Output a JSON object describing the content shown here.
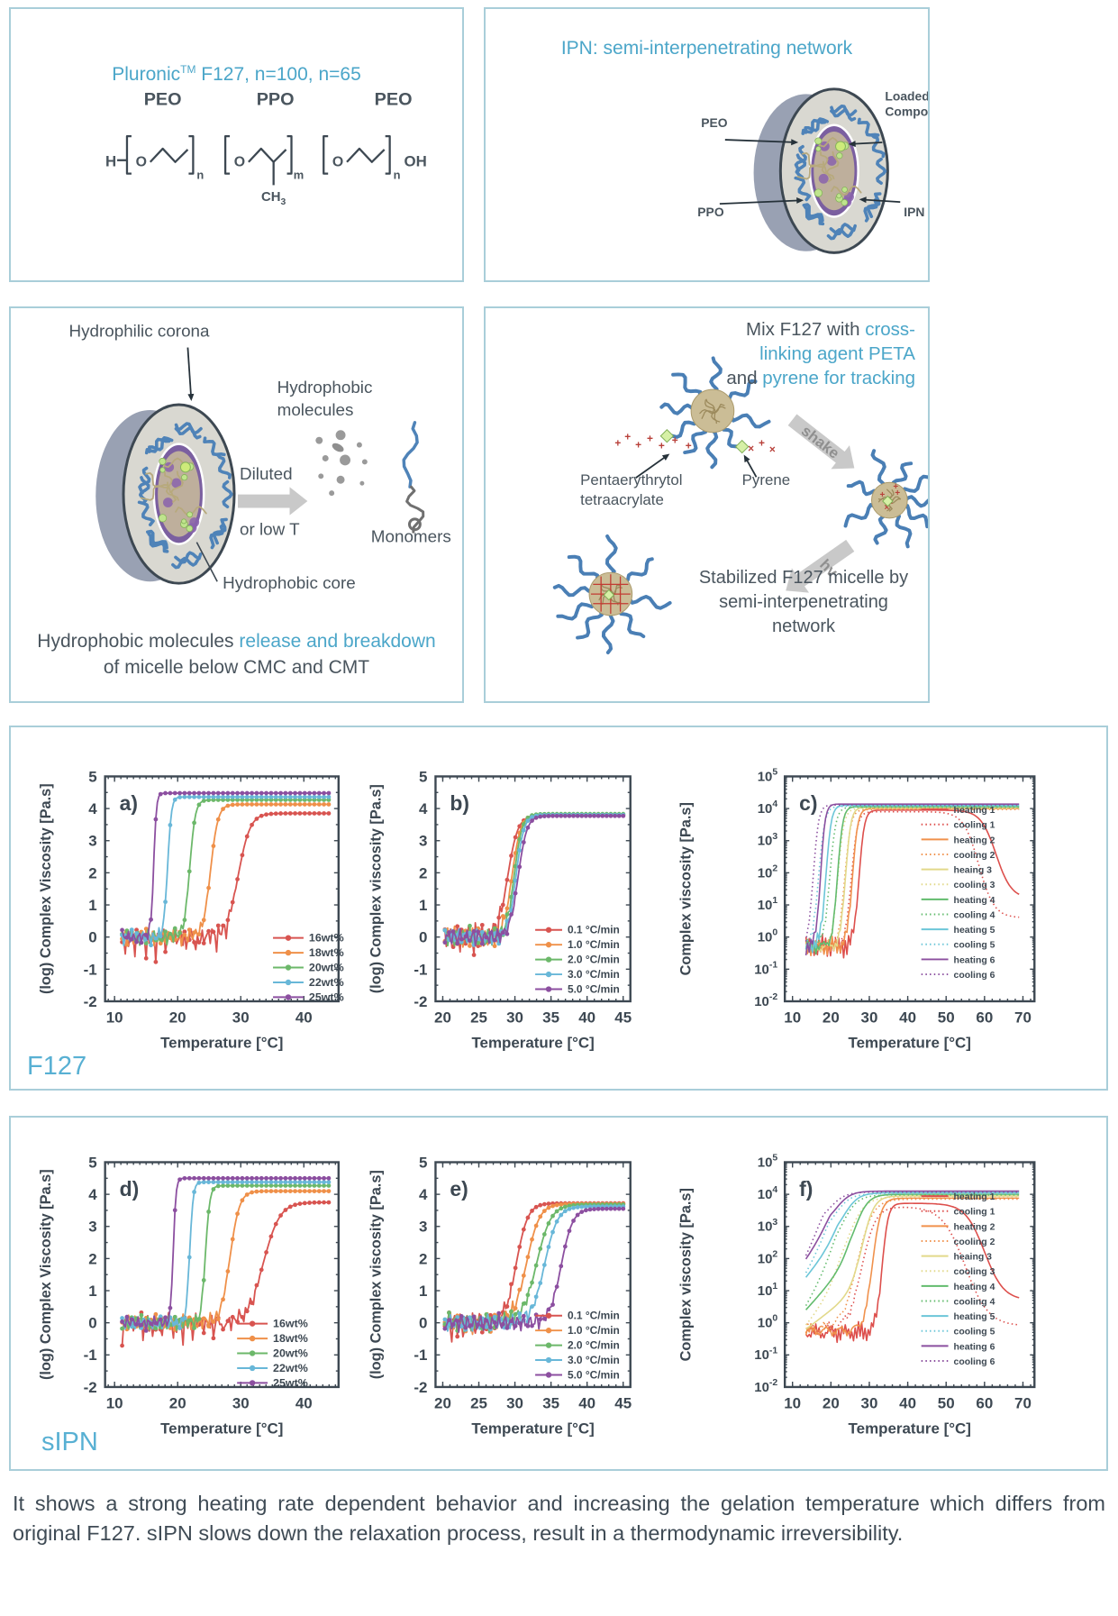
{
  "colors": {
    "accent": "#4ba6c9",
    "dark_text": "#4a555e",
    "axis": "#3d4852",
    "panel_border": "#a9ced9",
    "row_label": "#58b0d3"
  },
  "panels": {
    "pluronic": {
      "title_main": "Pluronic",
      "title_sup": "TM",
      "title_rest": " F127,  n=100, n=65",
      "structure": {
        "peo1": "PEO",
        "ppo": "PPO",
        "peo2": "PEO",
        "h": "H",
        "o1": "O",
        "o2": "O",
        "o3": "O",
        "n1": "n",
        "m": "m",
        "n2": "n",
        "ch": "CH",
        "ch_sub": "3",
        "oh": "OH"
      }
    },
    "ipn": {
      "title": "IPN: semi-interpenetrating network",
      "labels": {
        "peo": "PEO",
        "ppo": "PPO",
        "loaded1": "Loaded",
        "loaded2": "Compound",
        "ipn": "IPN"
      }
    },
    "micelle_breakdown": {
      "corona_label": "Hydrophilic corona",
      "hydrophobic_molecules_1": "Hydrophobic",
      "hydrophobic_molecules_2": "molecules",
      "diluted": "Diluted",
      "or_low_t": "or low T",
      "monomers": "Monomers",
      "core_label": "Hydrophobic core",
      "caption_pre": "Hydrophobic molecules ",
      "caption_blue": "release and breakdown",
      "caption_line2": "of micelle below CMC and CMT"
    },
    "crosslinking": {
      "title_l1a": "Mix F127 with ",
      "title_l1b": "cross-",
      "title_l2": "linking agent PETA",
      "title_l3a": "and ",
      "title_l3b": "pyrene for tracking",
      "peta_label_1": "Pentaerythrytol",
      "peta_label_2": "tetraacrylate",
      "pyrene_label": "Pyrene",
      "shake": "shake",
      "hv": "hv",
      "caption_1": "Stabilized F127 micelle by",
      "caption_2": "semi-interpenetrating network"
    },
    "f127_row_label": "F127",
    "sipn_row_label": "sIPN"
  },
  "footer": {
    "text": "It shows a strong heating rate dependent behavior and increasing the gelation temperature which differs from original F127. sIPN slows down the relaxation process, result in a thermodynamic irreversibility."
  },
  "chart_data": [
    {
      "type": "line",
      "group": "F127",
      "letter": "a)",
      "xlabel": "Temperature [°C]",
      "ylabel": "(log) Complex Viscosity [Pa.s]",
      "xlim": [
        8.5,
        45.5
      ],
      "ylim": [
        -2,
        5
      ],
      "xticks": [
        10,
        20,
        30,
        40
      ],
      "xminor": 1,
      "yticks": [
        5,
        4,
        3,
        2,
        1,
        0,
        -1,
        -2
      ],
      "markers": true,
      "x_start": 11.2,
      "x_end": 44.2,
      "series": [
        {
          "name": "16wt%",
          "color": "#d85450",
          "gel_T": 29.6,
          "rise_width": 0.95,
          "baseline": 0,
          "plateau": 3.85,
          "noise": 0.33,
          "dips": 0.5,
          "seed": 1.7
        },
        {
          "name": "18wt%",
          "color": "#ef9049",
          "gel_T": 25.2,
          "rise_width": 0.6,
          "baseline": 0,
          "plateau": 4.13,
          "noise": 0.3,
          "seed": 2.3
        },
        {
          "name": "20wt%",
          "color": "#6cb86a",
          "gel_T": 21.9,
          "rise_width": 0.45,
          "baseline": 0,
          "plateau": 4.27,
          "noise": 0.3,
          "seed": 3.1
        },
        {
          "name": "22wt%",
          "color": "#68b7d8",
          "gel_T": 18.4,
          "rise_width": 0.3,
          "baseline": 0,
          "plateau": 4.36,
          "noise": 0.27,
          "seed": 4.6
        },
        {
          "name": "25wt%",
          "color": "#8c4fa0",
          "gel_T": 16.2,
          "rise_width": 0.22,
          "baseline": 0,
          "plateau": 4.48,
          "noise": 0.25,
          "seed": 5.9
        }
      ]
    },
    {
      "type": "line",
      "group": "F127",
      "letter": "b)",
      "xlabel": "Temperature [°C]",
      "ylabel": "(log) Complex viscosity [Pa.s]",
      "xlim": [
        19,
        46
      ],
      "ylim": [
        -2,
        5
      ],
      "xticks": [
        20,
        25,
        30,
        35,
        40,
        45
      ],
      "xminor": 1,
      "yticks": [
        5,
        4,
        3,
        2,
        1,
        0,
        -1,
        -2
      ],
      "markers": true,
      "x_start": 20.3,
      "x_end": 45.2,
      "series": [
        {
          "name": "0.1 °C/min",
          "color": "#d85450",
          "gel_T": 29.0,
          "rise_width": 0.7,
          "baseline": 0,
          "plateau": 3.78,
          "noise": 0.5,
          "dips": 0.4,
          "seed": 6.2
        },
        {
          "name": "1.0 °C/min",
          "color": "#ef9049",
          "gel_T": 29.6,
          "rise_width": 0.6,
          "baseline": 0,
          "plateau": 3.81,
          "noise": 0.4,
          "seed": 7.4
        },
        {
          "name": "2.0 °C/min",
          "color": "#6cb86a",
          "gel_T": 29.9,
          "rise_width": 0.55,
          "baseline": 0,
          "plateau": 3.83,
          "noise": 0.35,
          "seed": 8.1
        },
        {
          "name": "3.0 °C/min",
          "color": "#68b7d8",
          "gel_T": 30.15,
          "rise_width": 0.55,
          "baseline": 0,
          "plateau": 3.8,
          "noise": 0.3,
          "seed": 9.5
        },
        {
          "name": "5.0 °C/min",
          "color": "#8c4fa0",
          "gel_T": 30.45,
          "rise_width": 0.6,
          "baseline": 0,
          "plateau": 3.77,
          "noise": 0.3,
          "seed": 10.3
        }
      ]
    },
    {
      "type": "line",
      "group": "F127",
      "letter": "c)",
      "yscale": "log",
      "xlabel": "Temperature [°C]",
      "ylabel": "Complex viscosity [Pa.s]",
      "xlim": [
        8,
        73
      ],
      "ylim": [
        -2,
        5
      ],
      "xticks": [
        10,
        20,
        30,
        40,
        50,
        60,
        70
      ],
      "xminor": 2,
      "yticks": [
        5,
        4,
        3,
        2,
        1,
        0,
        -1,
        -2
      ],
      "x_start": 13.5,
      "x_end": 69,
      "series": [
        {
          "name": "heating 1",
          "style": "solid",
          "color": "#dd4f4c",
          "gel_T": 27.3,
          "rise_width": 0.7,
          "baseline": -0.3,
          "plateau": 3.95,
          "noise": 0.38,
          "seed": 11,
          "drop_T": 63,
          "drop_width": 2,
          "drop_end": 1.2
        },
        {
          "name": "cooling 1",
          "style": "dotted",
          "color": "#dd4f4c",
          "gel_T": 25.3,
          "rise_width": 0.8,
          "baseline": -0.3,
          "plateau": 3.9,
          "noise": 0.32,
          "seed": 12,
          "drop_T": 58.5,
          "drop_width": 2,
          "drop_end": 0.6
        },
        {
          "name": "heating 2",
          "style": "solid",
          "color": "#f0914c",
          "gel_T": 25.6,
          "rise_width": 0.7,
          "baseline": -0.3,
          "plateau": 4.0,
          "noise": 0.36,
          "seed": 13
        },
        {
          "name": "cooling 2",
          "style": "dotted",
          "color": "#f0914c",
          "gel_T": 23.6,
          "rise_width": 0.8,
          "baseline": -0.3,
          "plateau": 3.97,
          "noise": 0.3,
          "seed": 14
        },
        {
          "name": "heaing 3",
          "style": "solid",
          "color": "#e2d98a",
          "gel_T": 23.8,
          "rise_width": 0.7,
          "baseline": -0.3,
          "plateau": 4.03,
          "noise": 0.34,
          "seed": 15
        },
        {
          "name": "cooling 3",
          "style": "dotted",
          "color": "#e2d98a",
          "gel_T": 21.8,
          "rise_width": 0.8,
          "baseline": -0.3,
          "plateau": 4.0,
          "noise": 0.3,
          "seed": 16
        },
        {
          "name": "heating 4",
          "style": "solid",
          "color": "#62bb6d",
          "gel_T": 21.7,
          "rise_width": 0.7,
          "baseline": -0.3,
          "plateau": 4.06,
          "noise": 0.34,
          "seed": 17
        },
        {
          "name": "cooling 4",
          "style": "dotted",
          "color": "#62bb6d",
          "gel_T": 19.7,
          "rise_width": 0.8,
          "baseline": -0.3,
          "plateau": 4.04,
          "noise": 0.28,
          "seed": 18
        },
        {
          "name": "heating 5",
          "style": "solid",
          "color": "#6cc6d8",
          "gel_T": 18.7,
          "rise_width": 0.7,
          "baseline": -0.3,
          "plateau": 4.1,
          "noise": 0.3,
          "seed": 19
        },
        {
          "name": "cooling 5",
          "style": "dotted",
          "color": "#6cc6d8",
          "gel_T": 16.8,
          "rise_width": 0.8,
          "baseline": -0.3,
          "plateau": 4.07,
          "noise": 0.26,
          "seed": 20
        },
        {
          "name": "heating 6",
          "style": "solid",
          "color": "#8b4f9f",
          "gel_T": 17.3,
          "rise_width": 0.6,
          "baseline": -0.3,
          "plateau": 4.14,
          "noise": 0.3,
          "seed": 21
        },
        {
          "name": "cooling 6",
          "style": "dotted",
          "color": "#8b4f9f",
          "gel_T": 15.4,
          "rise_width": 0.7,
          "baseline": -0.3,
          "plateau": 4.11,
          "noise": 0.26,
          "seed": 22
        }
      ]
    },
    {
      "type": "line",
      "group": "sIPN",
      "letter": "d)",
      "xlabel": "Temperature [°C]",
      "ylabel": "(log) Complex Viscosity [Pa.s]",
      "xlim": [
        8.5,
        45.5
      ],
      "ylim": [
        -2,
        5
      ],
      "xticks": [
        10,
        20,
        30,
        40
      ],
      "xminor": 1,
      "yticks": [
        5,
        4,
        3,
        2,
        1,
        0,
        -1,
        -2
      ],
      "markers": true,
      "x_start": 11.2,
      "x_end": 44.2,
      "series": [
        {
          "name": "16wt%",
          "color": "#d85450",
          "gel_T": 33.6,
          "rise_width": 1.3,
          "baseline": 0,
          "plateau": 3.75,
          "noise": 0.33,
          "dips": 0.5,
          "seed": 23.2
        },
        {
          "name": "18wt%",
          "color": "#ef9049",
          "gel_T": 28.3,
          "rise_width": 0.75,
          "baseline": 0,
          "plateau": 4.1,
          "noise": 0.3,
          "seed": 24.8
        },
        {
          "name": "20wt%",
          "color": "#6cb86a",
          "gel_T": 24.4,
          "rise_width": 0.35,
          "baseline": 0,
          "plateau": 4.27,
          "noise": 0.3,
          "seed": 25.6
        },
        {
          "name": "22wt%",
          "color": "#68b7d8",
          "gel_T": 21.9,
          "rise_width": 0.28,
          "baseline": 0,
          "plateau": 4.38,
          "noise": 0.27,
          "seed": 26.4
        },
        {
          "name": "25wt%",
          "color": "#8c4fa0",
          "gel_T": 19.3,
          "rise_width": 0.22,
          "baseline": 0,
          "plateau": 4.5,
          "noise": 0.25,
          "seed": 27.9
        }
      ]
    },
    {
      "type": "line",
      "group": "sIPN",
      "letter": "e)",
      "xlabel": "Temperature [°C]",
      "ylabel": "(log) Complex viscosity [Pa.s]",
      "xlim": [
        19,
        46
      ],
      "ylim": [
        -2,
        5
      ],
      "xticks": [
        20,
        25,
        30,
        35,
        40,
        45
      ],
      "xminor": 1,
      "yticks": [
        5,
        4,
        3,
        2,
        1,
        0,
        -1,
        -2
      ],
      "markers": true,
      "x_start": 20.3,
      "x_end": 45.2,
      "series": [
        {
          "name": "0.1 °C/min",
          "color": "#d85450",
          "gel_T": 30.2,
          "rise_width": 0.8,
          "baseline": 0,
          "plateau": 3.72,
          "noise": 0.45,
          "dips": 0.4,
          "seed": 28.3
        },
        {
          "name": "1.0 °C/min",
          "color": "#ef9049",
          "gel_T": 31.6,
          "rise_width": 0.9,
          "baseline": 0,
          "plateau": 3.7,
          "noise": 0.38,
          "seed": 29.1
        },
        {
          "name": "2.0 °C/min",
          "color": "#6cb86a",
          "gel_T": 33.0,
          "rise_width": 1.0,
          "baseline": 0,
          "plateau": 3.68,
          "noise": 0.34,
          "seed": 30.7
        },
        {
          "name": "3.0 °C/min",
          "color": "#68b7d8",
          "gel_T": 34.1,
          "rise_width": 0.9,
          "baseline": 0,
          "plateau": 3.62,
          "noise": 0.3,
          "seed": 31.5
        },
        {
          "name": "5.0 °C/min",
          "color": "#8c4fa0",
          "gel_T": 36.4,
          "rise_width": 0.8,
          "baseline": 0,
          "plateau": 3.55,
          "noise": 0.3,
          "seed": 32.6
        }
      ]
    },
    {
      "type": "line",
      "group": "sIPN",
      "letter": "f)",
      "yscale": "log",
      "xlabel": "Temperature [°C]",
      "ylabel": "Complex viscosity [Pa.s]",
      "xlim": [
        8,
        73
      ],
      "ylim": [
        -2,
        5
      ],
      "xticks": [
        10,
        20,
        30,
        40,
        50,
        60,
        70
      ],
      "xminor": 2,
      "yticks": [
        5,
        4,
        3,
        2,
        1,
        0,
        -1,
        -2
      ],
      "x_start": 13.5,
      "x_end": 69,
      "series": [
        {
          "name": "heating 1",
          "style": "solid",
          "color": "#dd4f4c",
          "gel_T": 33.3,
          "rise_width": 0.8,
          "baseline": -0.3,
          "plateau": 3.72,
          "noise": 0.4,
          "seed": 33,
          "drop_T": 60,
          "drop_width": 2.5,
          "drop_end": 0.7
        },
        {
          "name": "cooling 1",
          "style": "dotted",
          "color": "#dd4f4c",
          "gel_T": 28.0,
          "rise_width": 1.8,
          "baseline": -0.2,
          "plateau": 3.62,
          "noise": 0.35,
          "seed": 34,
          "drop_T": 55,
          "drop_width": 3,
          "drop_end": -0.1
        },
        {
          "name": "heating 2",
          "style": "solid",
          "color": "#f0914c",
          "gel_T": 30.8,
          "rise_width": 1.1,
          "baseline": -0.25,
          "plateau": 3.88,
          "noise": 0.35,
          "seed": 35
        },
        {
          "name": "cooling 2",
          "style": "dotted",
          "color": "#f0914c",
          "gel_T": 26.8,
          "rise_width": 2.0,
          "baseline": -0.2,
          "plateau": 3.85,
          "noise": 0.3,
          "seed": 36
        },
        {
          "name": "heaing 3",
          "style": "solid",
          "color": "#e2d98a",
          "pre_start": -0.2,
          "pre_end": 1.0,
          "gel_T": 28.3,
          "rise_width": 1.5,
          "plateau": 3.95,
          "seed": 37
        },
        {
          "name": "cooling 3",
          "style": "dotted",
          "color": "#e2d98a",
          "pre_start": -0.1,
          "pre_end": 1.2,
          "gel_T": 24.2,
          "rise_width": 2.2,
          "plateau": 3.92,
          "seed": 38
        },
        {
          "name": "heating 4",
          "style": "solid",
          "color": "#62bb6d",
          "pre_start": 0.4,
          "pre_end": 1.9,
          "gel_T": 26.3,
          "rise_width": 1.7,
          "plateau": 4.0,
          "seed": 39
        },
        {
          "name": "cooling 4",
          "style": "dotted",
          "color": "#62bb6d",
          "pre_start": 0.5,
          "pre_end": 2.1,
          "gel_T": 22.8,
          "rise_width": 2.0,
          "plateau": 3.98,
          "seed": 40
        },
        {
          "name": "heating 5",
          "style": "solid",
          "color": "#6cc6d8",
          "pre_start": 1.4,
          "pre_end": 2.6,
          "gel_T": 23.3,
          "rise_width": 1.9,
          "plateau": 4.05,
          "seed": 41
        },
        {
          "name": "cooling 5",
          "style": "dotted",
          "color": "#6cc6d8",
          "pre_start": 1.5,
          "pre_end": 2.7,
          "gel_T": 21.0,
          "rise_width": 2.0,
          "plateau": 4.02,
          "seed": 42
        },
        {
          "name": "heating 6",
          "style": "solid",
          "color": "#8b4f9f",
          "pre_start": 1.95,
          "pre_end": 3.0,
          "gel_T": 21.3,
          "rise_width": 1.9,
          "plateau": 4.1,
          "seed": 43
        },
        {
          "name": "cooling 6",
          "style": "dotted",
          "color": "#8b4f9f",
          "pre_start": 2.0,
          "pre_end": 3.05,
          "gel_T": 19.6,
          "rise_width": 2.0,
          "plateau": 4.07,
          "seed": 44
        }
      ]
    }
  ]
}
